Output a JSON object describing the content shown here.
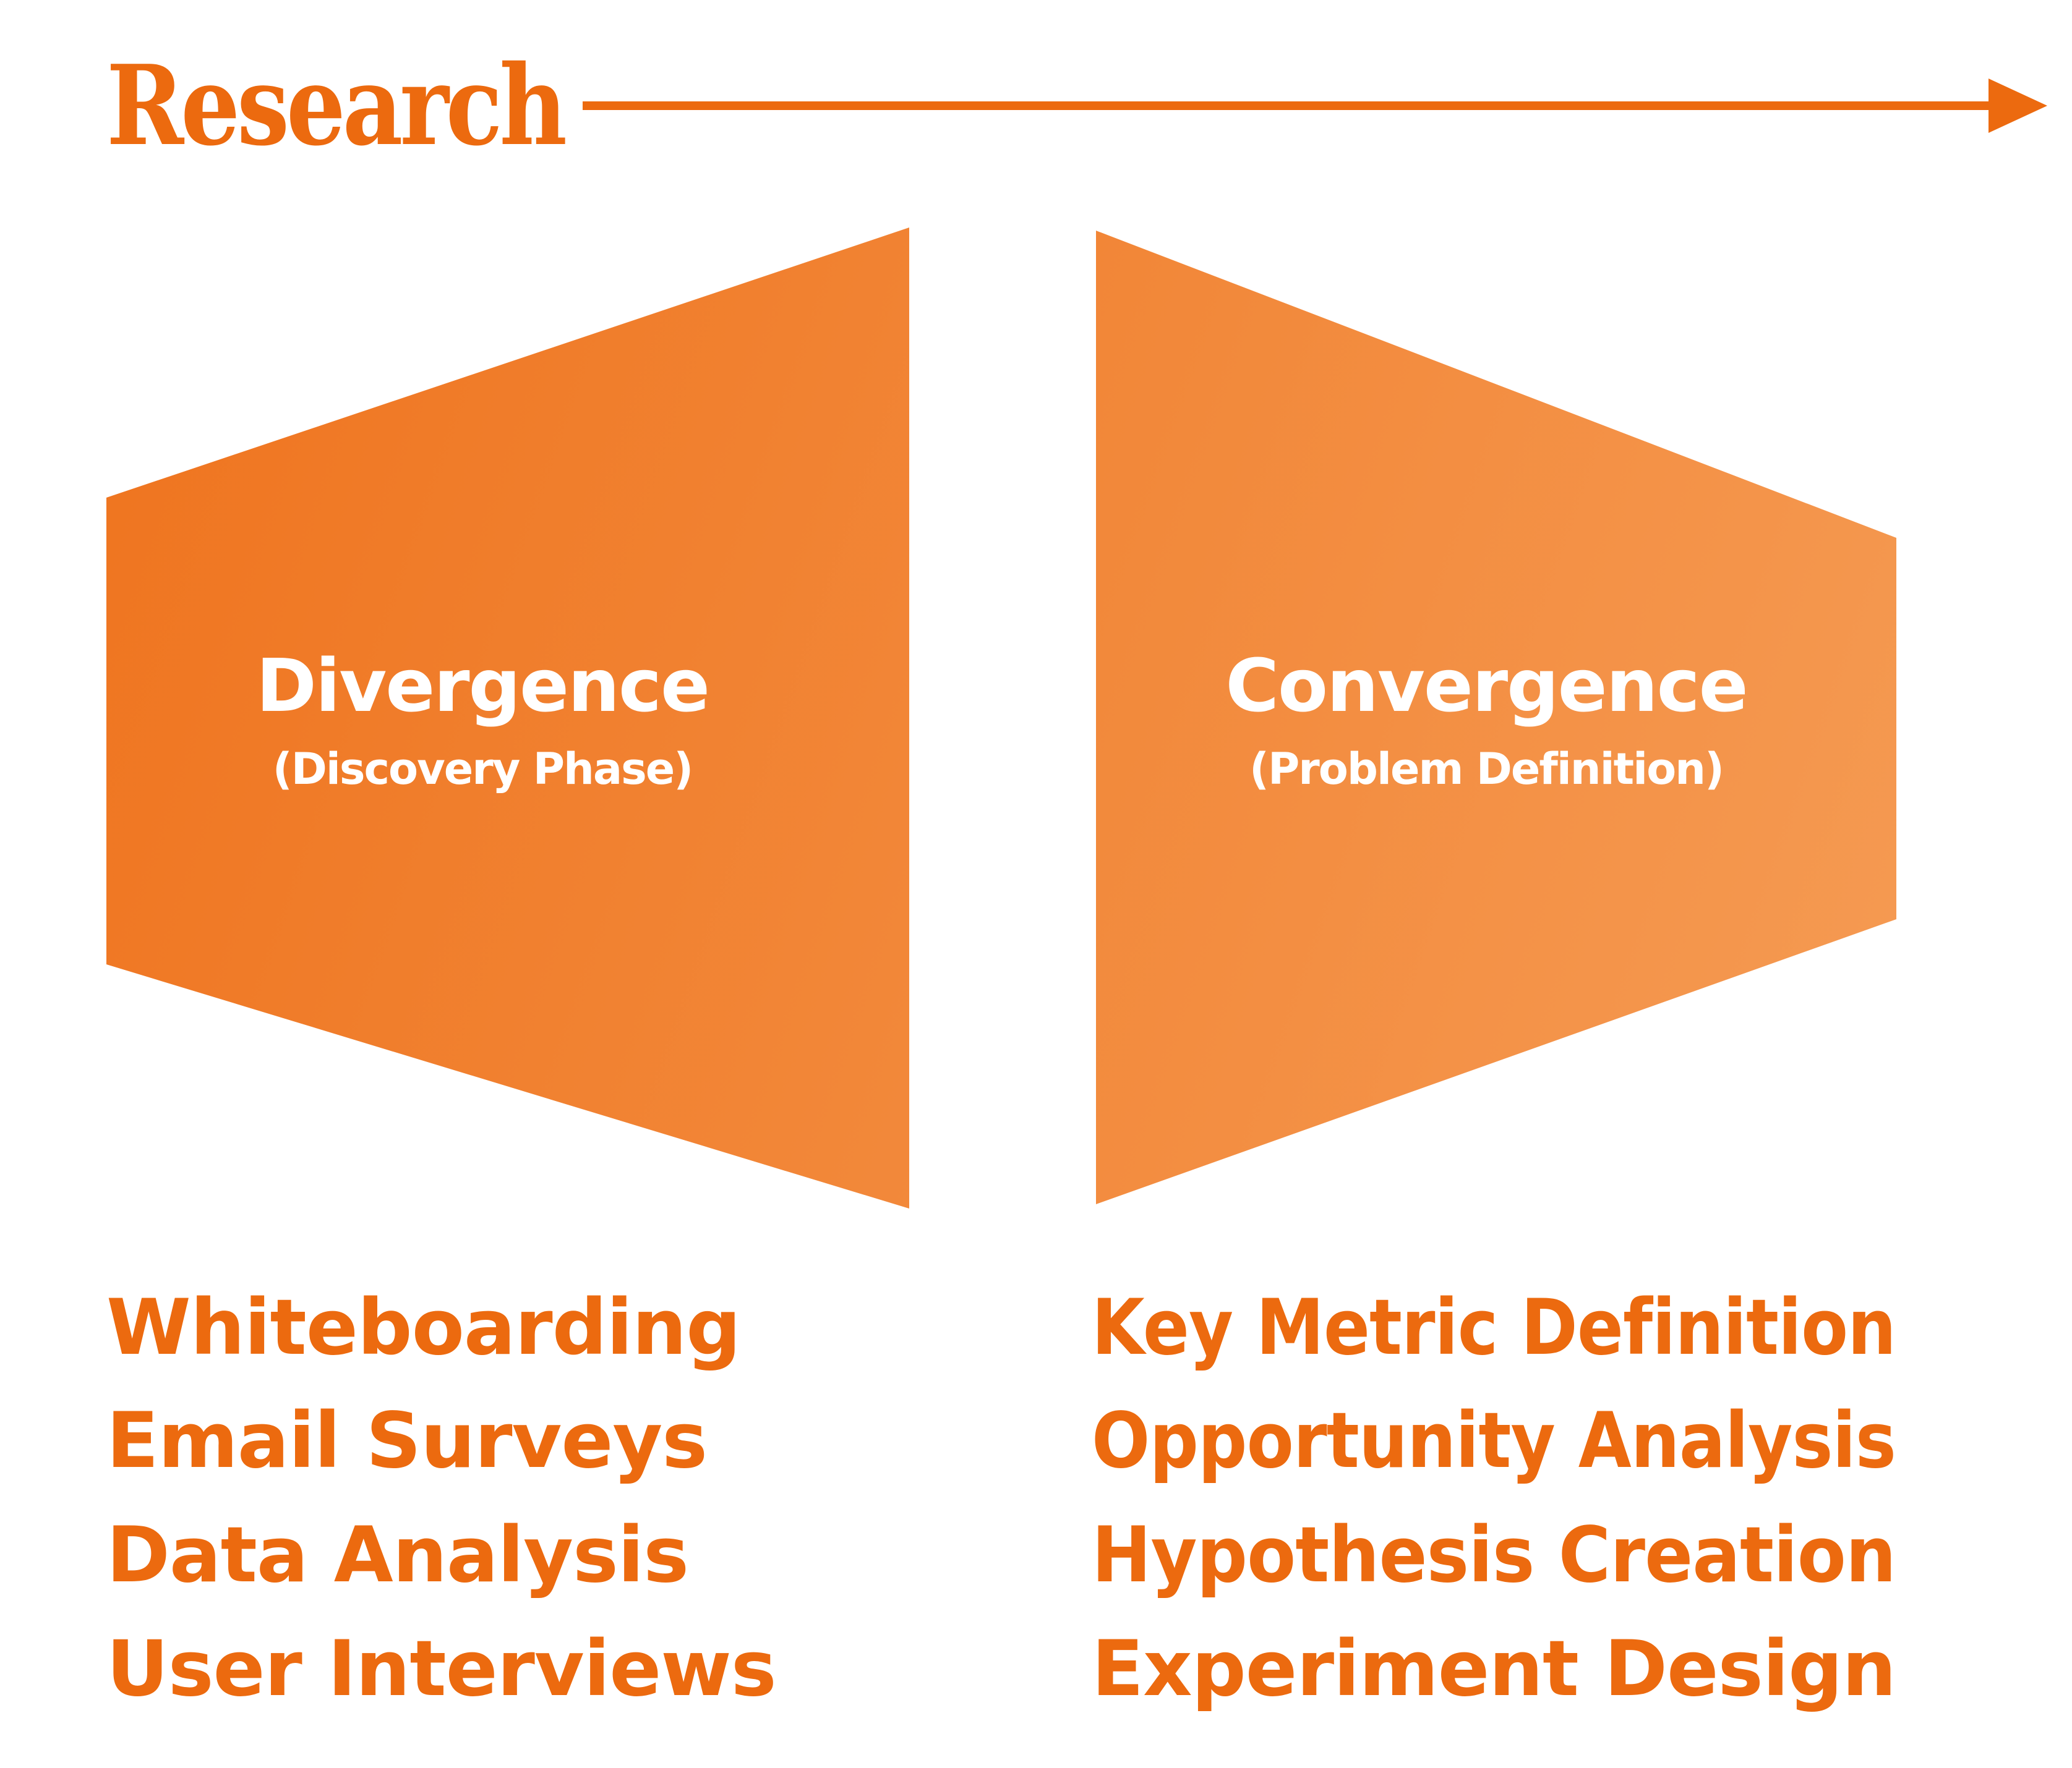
{
  "title": "Research",
  "colors": {
    "accent": "#ec6a0f",
    "shape_start": "#ef7520",
    "shape_end": "#f59a52",
    "phase_text": "#ffffff"
  },
  "phases": [
    {
      "name": "Divergence",
      "subtitle": "(Discovery Phase)",
      "items": [
        "Whiteboarding",
        "Email Surveys",
        "Data Analysis",
        "User Interviews"
      ]
    },
    {
      "name": "Convergence",
      "subtitle": "(Problem Definition)",
      "items": [
        "Key Metric Definition",
        "Opportunity Analysis",
        "Hypothesis Creation",
        "Experiment Design"
      ]
    }
  ]
}
